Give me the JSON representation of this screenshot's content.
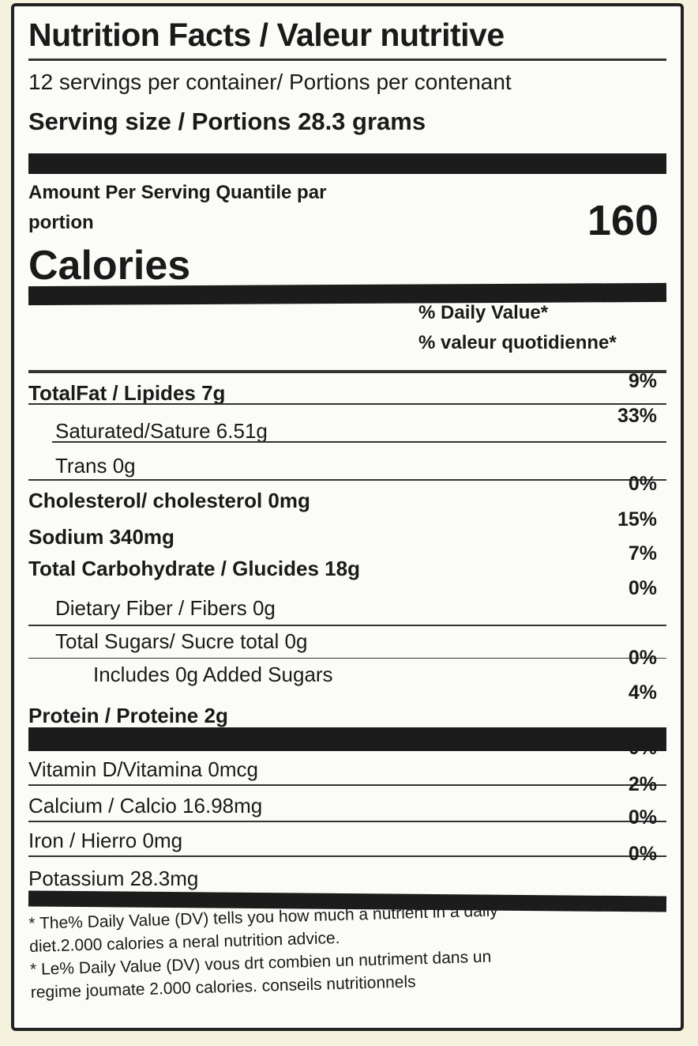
{
  "title": "Nutrition Facts / Valeur nutritive",
  "servings_per_container": "12 servings per container/ Portions per contenant",
  "serving_size": "Serving size / Portions 28.3 grams",
  "amount_per_serving_1": "Amount Per Serving Quantile par",
  "amount_per_serving_2": "portion",
  "calories_label": "Calories",
  "calories_value": "160",
  "dv_header_1": "% Daily Value*",
  "dv_header_2": "% valeur quotidienne*",
  "nutrients": [
    {
      "label": "TotalFat / Lipides 7g",
      "dv": "9%"
    },
    {
      "label": "Saturated/Sature 6.51g",
      "dv": "33%"
    },
    {
      "label": "Trans 0g",
      "dv": ""
    },
    {
      "label": "Cholesterol/ cholesterol 0mg",
      "dv": "0%"
    },
    {
      "label": "Sodium 340mg",
      "dv": "15%"
    },
    {
      "label": "Total Carbohydrate / Glucides 18g",
      "dv": "7%"
    },
    {
      "label": "Dietary Fiber / Fibers 0g",
      "dv": "0%"
    },
    {
      "label": "Total Sugars/ Sucre total  0g",
      "dv": ""
    },
    {
      "label": "Includes 0g Added Sugars",
      "dv": "0%"
    },
    {
      "label": "Protein / Proteine 2g",
      "dv": "4%"
    }
  ],
  "vitamins": [
    {
      "label": "Vitamin D/Vitamina  0mcg",
      "dv": "0%"
    },
    {
      "label": "Calcium / Calcio 16.98mg",
      "dv": "2%"
    },
    {
      "label": "Iron / Hierro 0mg",
      "dv": "0%"
    },
    {
      "label": "Potassium 28.3mg",
      "dv": "0%"
    }
  ],
  "footnote_en_1": "* The%  Daily Value (DV) tells you how much a nutrient in a daily",
  "footnote_en_2": "diet.2.000 calories a neral nutrition advice.",
  "footnote_fr_1": "* Le% Daily Value (DV) vous drt combien un nutriment  dans un",
  "footnote_fr_2": "regime joumate 2.000 calories. conseils nutritionnels"
}
